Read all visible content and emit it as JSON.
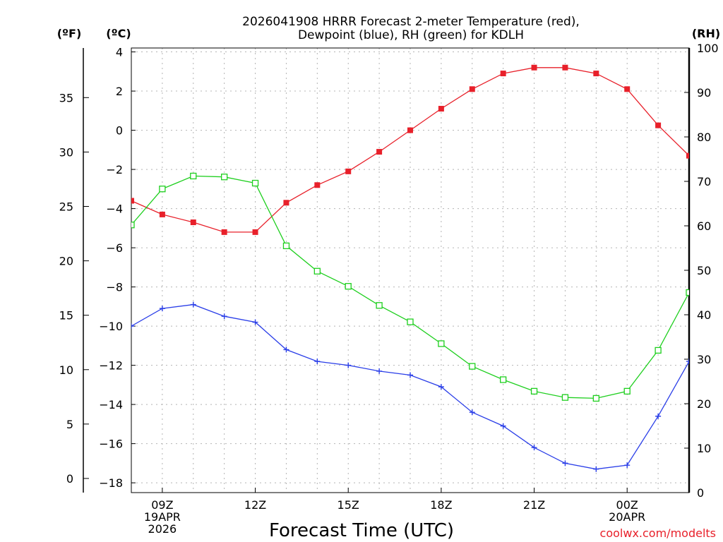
{
  "chart_data": {
    "type": "line",
    "title_lines": [
      "2026041908 HRRR Forecast 2-meter Temperature (red),",
      "Dewpoint (blue), RH (green) for KDLH"
    ],
    "xlabel": "Forecast Time (UTC)",
    "credit": "coolwx.com/modelts",
    "units": {
      "fahrenheit": "(ºF)",
      "celsius": "(ºC)",
      "rh": "(RH)"
    },
    "x": [
      8,
      9,
      10,
      11,
      12,
      13,
      14,
      15,
      16,
      17,
      18,
      19,
      20,
      21,
      22,
      23,
      24,
      25,
      26
    ],
    "x_range": [
      8,
      26
    ],
    "x_ticks": [
      {
        "x": 9,
        "lines": [
          "09Z",
          "19APR",
          "2026"
        ]
      },
      {
        "x": 12,
        "lines": [
          "12Z"
        ]
      },
      {
        "x": 15,
        "lines": [
          "15Z"
        ]
      },
      {
        "x": 18,
        "lines": [
          "18Z"
        ]
      },
      {
        "x": 21,
        "lines": [
          "21Z"
        ]
      },
      {
        "x": 24,
        "lines": [
          "00Z",
          "20APR"
        ]
      }
    ],
    "celsius_axis": {
      "range": [
        -18.5,
        4.2
      ],
      "ticks": [
        {
          "value": 4,
          "label": "4"
        },
        {
          "value": 2,
          "label": "2"
        },
        {
          "value": 0,
          "label": "0"
        },
        {
          "value": -2,
          "label": "−2"
        },
        {
          "value": -4,
          "label": "−4"
        },
        {
          "value": -6,
          "label": "−6"
        },
        {
          "value": -8,
          "label": "−8"
        },
        {
          "value": -10,
          "label": "−10"
        },
        {
          "value": -12,
          "label": "−12"
        },
        {
          "value": -14,
          "label": "−14"
        },
        {
          "value": -16,
          "label": "−16"
        },
        {
          "value": -18,
          "label": "−18"
        }
      ]
    },
    "fahrenheit_axis": {
      "ticks": [
        {
          "value": 35,
          "label": "35"
        },
        {
          "value": 30,
          "label": "30"
        },
        {
          "value": 25,
          "label": "25"
        },
        {
          "value": 20,
          "label": "20"
        },
        {
          "value": 15,
          "label": "15"
        },
        {
          "value": 10,
          "label": "10"
        },
        {
          "value": 5,
          "label": "5"
        },
        {
          "value": 0,
          "label": "0"
        }
      ]
    },
    "rh_axis": {
      "range": [
        0,
        100
      ],
      "ticks": [
        {
          "value": 100,
          "label": "100"
        },
        {
          "value": 90,
          "label": "90"
        },
        {
          "value": 80,
          "label": "80"
        },
        {
          "value": 70,
          "label": "70"
        },
        {
          "value": 60,
          "label": "60"
        },
        {
          "value": 50,
          "label": "50"
        },
        {
          "value": 40,
          "label": "40"
        },
        {
          "value": 30,
          "label": "30"
        },
        {
          "value": 20,
          "label": "20"
        },
        {
          "value": 10,
          "label": "10"
        },
        {
          "value": 0,
          "label": "0"
        }
      ]
    },
    "series": [
      {
        "name": "2-meter Temperature",
        "axis": "celsius",
        "color": "#e8202a",
        "marker": "filled-square",
        "values": [
          -3.6,
          -4.3,
          -4.7,
          -5.2,
          -5.2,
          -3.7,
          -2.8,
          -2.1,
          -1.1,
          0.0,
          1.1,
          2.1,
          2.9,
          3.2,
          3.2,
          2.9,
          2.1,
          0.25,
          -1.3
        ]
      },
      {
        "name": "Dewpoint",
        "axis": "celsius",
        "color": "#2a3ee8",
        "marker": "plus",
        "values": [
          -10.0,
          -9.1,
          -8.9,
          -9.5,
          -9.8,
          -11.2,
          -11.8,
          -12.0,
          -12.3,
          -12.5,
          -13.1,
          -14.4,
          -15.1,
          -16.2,
          -17.0,
          -17.3,
          -17.1,
          -14.6,
          -11.8
        ]
      },
      {
        "name": "RH",
        "axis": "rh",
        "color": "#1ecf1e",
        "marker": "open-square",
        "values": [
          60.2,
          68.3,
          71.2,
          71.0,
          69.6,
          55.5,
          49.8,
          46.4,
          42.1,
          38.4,
          33.5,
          28.4,
          25.4,
          22.8,
          21.4,
          21.2,
          22.8,
          32.0,
          45.0
        ]
      }
    ]
  }
}
